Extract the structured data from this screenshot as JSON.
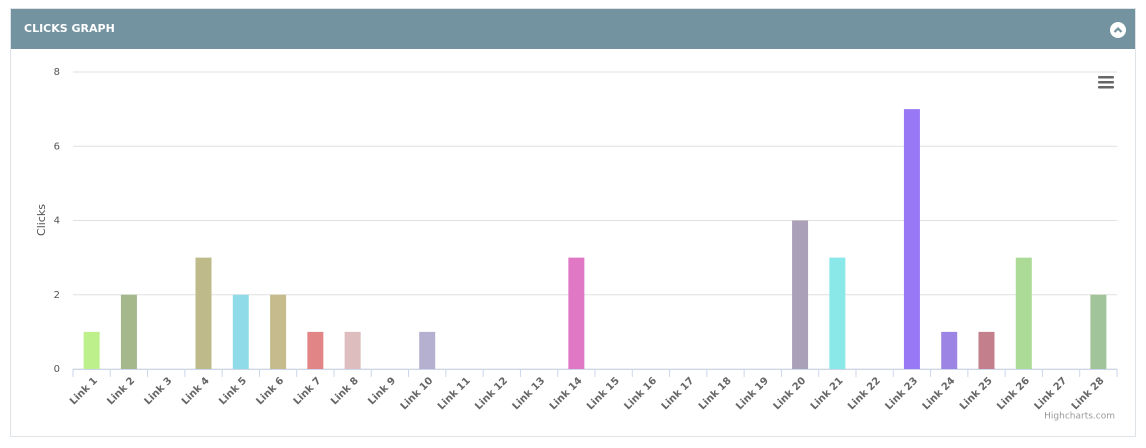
{
  "panel": {
    "title": "CLICKS GRAPH"
  },
  "chart_data": {
    "type": "bar",
    "y_label": "Clicks",
    "credits": "Highcharts.com",
    "categories": [
      "Link 1",
      "Link 2",
      "Link 3",
      "Link 4",
      "Link 5",
      "Link 6",
      "Link 7",
      "Link 8",
      "Link 9",
      "Link 10",
      "Link 11",
      "Link 12",
      "Link 13",
      "Link 14",
      "Link 15",
      "Link 16",
      "Link 17",
      "Link 18",
      "Link 19",
      "Link 20",
      "Link 21",
      "Link 22",
      "Link 23",
      "Link 24",
      "Link 25",
      "Link 26",
      "Link 27",
      "Link 28"
    ],
    "values": [
      1,
      2,
      0,
      3,
      2,
      2,
      1,
      1,
      0,
      1,
      0,
      0,
      0,
      3,
      0,
      0,
      0,
      0,
      0,
      4,
      3,
      0,
      7,
      1,
      1,
      3,
      0,
      2
    ],
    "colors": [
      "#bdf08a",
      "#a4b88c",
      null,
      "#bfba8a",
      "#8fdce8",
      "#c5bb8c",
      "#e28587",
      "#ddbdbd",
      null,
      "#b5b0d0",
      null,
      null,
      null,
      "#e078c6",
      null,
      null,
      null,
      null,
      null,
      "#aaa0b8",
      "#8ae8e8",
      null,
      "#9878f5",
      "#9b84e3",
      "#c47f8d",
      "#acdb98",
      null,
      "#a2c49a"
    ],
    "ylim": [
      0,
      8
    ],
    "yticks": [
      0,
      2,
      4,
      6,
      8
    ],
    "grid": true
  }
}
